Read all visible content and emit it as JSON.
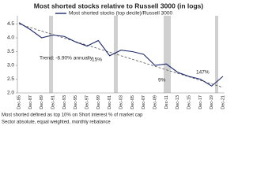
{
  "chart_data": {
    "type": "line",
    "title": "Most shorted stocks relative to Russell 3000 (in logs)",
    "categories": [
      "Dec-85",
      "Dec-87",
      "Dec-89",
      "Dec-91",
      "Dec-93",
      "Dec-95",
      "Dec-97",
      "Dec-99",
      "Dec-01",
      "Dec-03",
      "Dec-05",
      "Dec-07",
      "Dec-09",
      "Dec-11",
      "Dec-13",
      "Dec-15",
      "Dec-17",
      "Dec-19",
      "Dec-21"
    ],
    "series": [
      {
        "name": "Most shorted stocks (top decile)/Russell 3000",
        "color": "#1f2a6e",
        "values": [
          4.55,
          4.3,
          4.0,
          4.1,
          4.05,
          3.85,
          3.7,
          3.9,
          3.35,
          3.55,
          3.5,
          3.4,
          3.0,
          3.05,
          2.75,
          2.6,
          2.5,
          2.25,
          2.6
        ]
      }
    ],
    "trend_line": {
      "values": [
        4.5,
        2.2
      ]
    },
    "annotations": [
      "Trend: -6.90% annually",
      "15%",
      "9%",
      "147%"
    ],
    "ylim": [
      2.0,
      4.8
    ],
    "yticks": [
      {
        "value": 2,
        "label": "2.0"
      },
      2.5,
      {
        "value": 3,
        "label": "3.0"
      },
      3.5,
      {
        "value": 4,
        "label": "4.0"
      },
      4.5
    ],
    "grid": false,
    "footnotes": [
      "Most shorted defined as top 10% on Short interest % of market cap",
      "Sector absolute, equal weighted, monthly rebalance"
    ]
  }
}
